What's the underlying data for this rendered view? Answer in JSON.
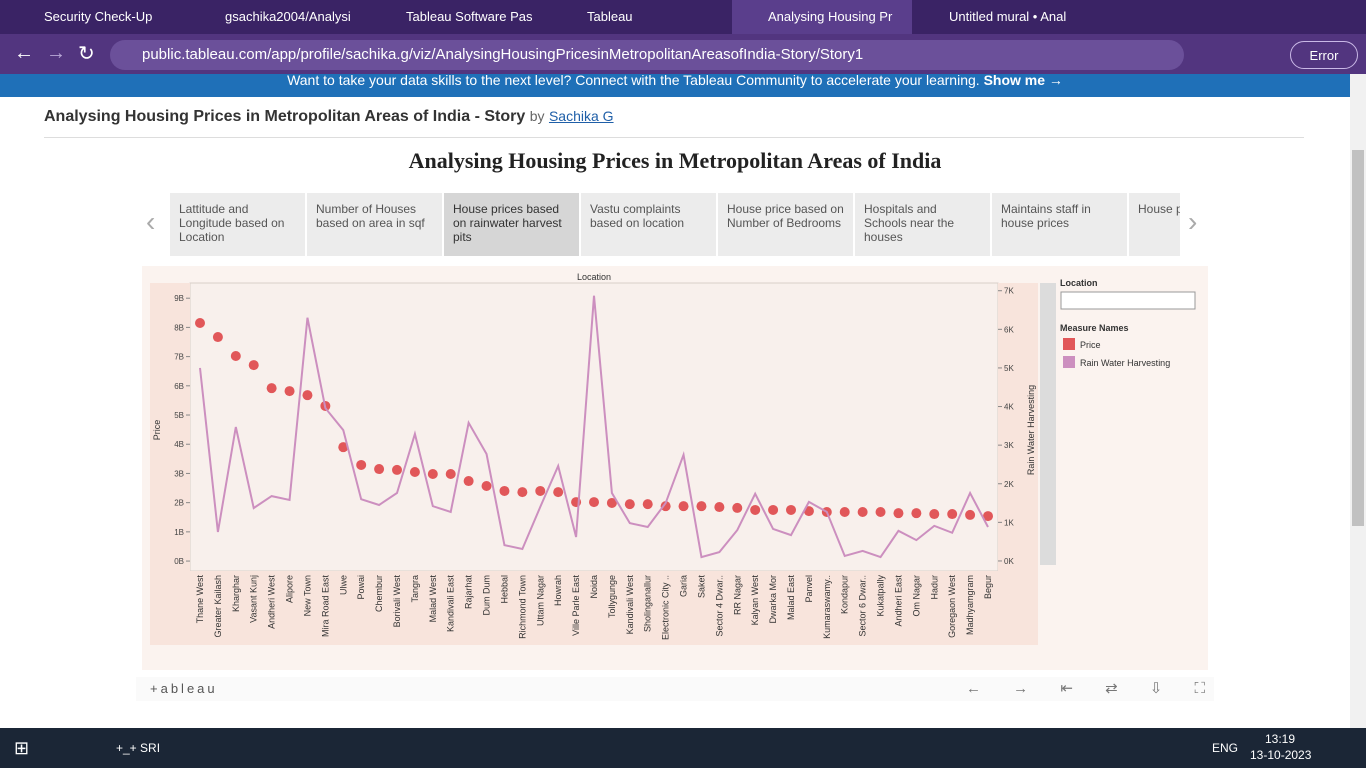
{
  "browser": {
    "tabs": [
      "Security Check-Up",
      "gsachika2004/Analysi",
      "Tableau Software Pas",
      "Tableau",
      "Analysing Housing Pr",
      "Untitled mural • Anal"
    ],
    "active_tab": 4,
    "url": "public.tableau.com/app/profile/sachika.g/viz/AnalysingHousingPricesinMetropolitanAreasofIndia-Story/Story1",
    "status_button": "Error"
  },
  "banner": {
    "text": "Want to take your data skills to the next level? Connect with the Tableau Community to accelerate your learning.",
    "link": "Show me →"
  },
  "header": {
    "title": "Analysing Housing Prices in Metropolitan Areas of India - Story",
    "by": "by",
    "author": "Sachika G"
  },
  "story": {
    "title": "Analysing Housing Prices in Metropolitan Areas of India",
    "points": [
      "Lattitude and Longitude based on Location",
      "Number of Houses based on area in sqf",
      "House prices based on rainwater harvest pits",
      "Vastu complaints based on location",
      "House price based on Number of Bedrooms",
      "Hospitals and Schools near the houses",
      "Maintains staff in house prices",
      "House p intercom"
    ],
    "active": 2
  },
  "chart_data": {
    "type": "combo",
    "x_label": "Location",
    "y_label": "Price",
    "y2_label": "Rain Water Harvesting",
    "filter_title": "Location",
    "legend_title": "Measure Names",
    "categories": [
      "Thane West",
      "Greater Kailash",
      "Kharghar",
      "Vasant Kunj",
      "Andheri West",
      "Alipore",
      "New Town",
      "Mira Road East",
      "Ulwe",
      "Powai",
      "Chembur",
      "Borivali West",
      "Tangra",
      "Malad West",
      "Kandivali East",
      "Rajarhat",
      "Dum Dum",
      "Hebbal",
      "Richmond Town",
      "Uttam Nagar",
      "Howrah",
      "Ville Parle East",
      "Noida",
      "Tollygunge",
      "Kandivali West",
      "Sholinganallur",
      "Electronic City ..",
      "Garia",
      "Saket",
      "Sector 4 Dwar..",
      "RR Nagar",
      "Kalyan West",
      "Dwarka Mor",
      "Malad East",
      "Panvel",
      "Kumaraswamy..",
      "Kondapur",
      "Sector 6 Dwar..",
      "Kukatpally",
      "Andheri East",
      "Om Nagar",
      "Hadur",
      "Goregaon West",
      "Madhyamgram",
      "Begur"
    ],
    "series": [
      {
        "name": "Price",
        "color": "#e15759",
        "mark": "circle",
        "values": [
          8.15,
          7.67,
          7.02,
          6.71,
          5.92,
          5.82,
          5.68,
          5.31,
          3.9,
          3.29,
          3.15,
          3.12,
          3.05,
          2.98,
          2.98,
          2.74,
          2.57,
          2.4,
          2.36,
          2.4,
          2.36,
          2.02,
          2.02,
          1.99,
          1.95,
          1.95,
          1.88,
          1.88,
          1.88,
          1.85,
          1.82,
          1.75,
          1.75,
          1.75,
          1.71,
          1.68,
          1.68,
          1.68,
          1.68,
          1.64,
          1.64,
          1.61,
          1.61,
          1.58,
          1.54
        ]
      },
      {
        "name": "Rain Water Harvesting",
        "color": "#cc8fbf",
        "mark": "line",
        "axis": "y2",
        "values": [
          5.0,
          0.75,
          3.47,
          1.37,
          1.68,
          1.58,
          6.3,
          3.96,
          3.39,
          1.6,
          1.45,
          1.76,
          3.29,
          1.42,
          1.27,
          3.58,
          2.77,
          0.41,
          0.31,
          1.4,
          2.46,
          0.62,
          6.87,
          1.76,
          0.98,
          0.88,
          1.5,
          2.75,
          0.1,
          0.23,
          0.8,
          1.74,
          0.83,
          0.67,
          1.53,
          1.27,
          0.13,
          0.26,
          0.1,
          0.78,
          0.54,
          0.91,
          0.73,
          1.76,
          0.88
        ]
      }
    ],
    "ylim": [
      -0.34,
      9.52
    ],
    "yticks": [
      {
        "value": 0,
        "label": "0B"
      },
      {
        "value": 1,
        "label": "1B"
      },
      {
        "value": 2,
        "label": "2B"
      },
      {
        "value": 3,
        "label": "3B"
      },
      {
        "value": 4,
        "label": "4B"
      },
      {
        "value": 5,
        "label": "5B"
      },
      {
        "value": 6,
        "label": "6B"
      },
      {
        "value": 7,
        "label": "7B"
      },
      {
        "value": 8,
        "label": "8B"
      },
      {
        "value": 9,
        "label": "9B"
      }
    ],
    "y2lim": [
      -0.26,
      7.2
    ],
    "y2ticks": [
      {
        "value": 0,
        "label": "0K"
      },
      {
        "value": 1,
        "label": "1K"
      },
      {
        "value": 2,
        "label": "2K"
      },
      {
        "value": 3,
        "label": "3K"
      },
      {
        "value": 4,
        "label": "4K"
      },
      {
        "value": 5,
        "label": "5K"
      },
      {
        "value": 6,
        "label": "6K"
      },
      {
        "value": 7,
        "label": "7K"
      }
    ]
  },
  "footer": {
    "logo": "+ableau"
  },
  "taskbar": {
    "search_label": "+_+ SRI",
    "language": "ENG",
    "time": "13:19",
    "date": "13-10-2023"
  }
}
